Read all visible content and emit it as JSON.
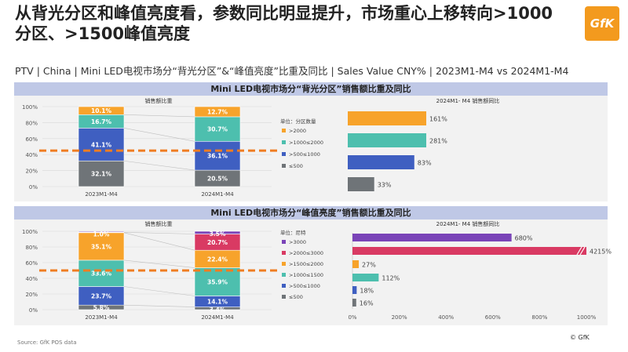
{
  "header": {
    "title": "从背光分区和峰值亮度看，参数同比明显提升，市场重心上移转向>1000分区、>1500峰值亮度",
    "logo": "GfK",
    "subtitle": "PTV | China | Mini LED电视市场分“背光分区”&“峰值亮度”比重及同比 | Sales Value CNY% | 2023M1-M4 vs 2024M1-M4"
  },
  "footer": {
    "source": "Source: GfK POS data",
    "copyright": "© GfK"
  },
  "panels": [
    {
      "title": "Mini LED电视市场分“背光分区”销售额比重及同比"
    },
    {
      "title": "Mini LED电视市场分“峰值亮度”销售额比重及同比"
    }
  ],
  "chart_data": [
    {
      "type": "bar",
      "stacked": true,
      "title": "销售额比重",
      "categories": [
        "2023M1-M4",
        "2024M1-M4"
      ],
      "legend_title": "单位：分区数量",
      "yticks": [
        "0%",
        "20%",
        "40%",
        "60%",
        "80%",
        "100%"
      ],
      "ylim": [
        0,
        100
      ],
      "reference_line": 45,
      "series": [
        {
          "name": "≤500",
          "color": "#6f7478",
          "values": [
            32.1,
            20.5
          ],
          "labels": [
            "32.1%",
            "20.5%"
          ]
        },
        {
          "name": ">500≤1000",
          "color": "#3f5fc1",
          "values": [
            41.1,
            36.1
          ],
          "labels": [
            "41.1%",
            "36.1%"
          ]
        },
        {
          "name": ">1000≤2000",
          "color": "#4dbfae",
          "values": [
            16.7,
            30.7
          ],
          "labels": [
            "16.7%",
            "30.7%"
          ]
        },
        {
          "name": ">2000",
          "color": "#f7a32b",
          "values": [
            10.1,
            12.7
          ],
          "labels": [
            "10.1%",
            "12.7%"
          ]
        }
      ]
    },
    {
      "type": "bar",
      "orientation": "horizontal",
      "title": "2024M1- M4 销售额同比",
      "categories": [
        ">2000",
        ">1000≤2000",
        ">500≤1000",
        "≤500"
      ],
      "values": [
        161,
        281,
        83,
        33
      ],
      "labels": [
        "161%",
        "281%",
        "83%",
        "33%"
      ],
      "colors": [
        "#f7a32b",
        "#4dbfae",
        "#3f5fc1",
        "#6f7478"
      ]
    },
    {
      "type": "bar",
      "stacked": true,
      "title": "销售额比重",
      "categories": [
        "2023M1-M4",
        "2024M1-M4"
      ],
      "legend_title": "单位：尼特",
      "yticks": [
        "0%",
        "20%",
        "40%",
        "60%",
        "80%",
        "100%"
      ],
      "ylim": [
        0,
        100
      ],
      "reference_line": 50,
      "series": [
        {
          "name": "≤500",
          "color": "#6f7478",
          "values": [
            5.8,
            3.4
          ],
          "labels": [
            "5.8%",
            "3.4%"
          ]
        },
        {
          "name": ">500≤1000",
          "color": "#3f5fc1",
          "values": [
            23.7,
            14.1
          ],
          "labels": [
            "23.7%",
            "14.1%"
          ]
        },
        {
          "name": ">1000≤1500",
          "color": "#4dbfae",
          "values": [
            33.6,
            35.9
          ],
          "labels": [
            "33.6%",
            "35.9%"
          ]
        },
        {
          "name": ">1500≤2000",
          "color": "#f7a32b",
          "values": [
            35.1,
            22.4
          ],
          "labels": [
            "35.1%",
            "22.4%"
          ]
        },
        {
          "name": ">2000≤3000",
          "color": "#d93a63",
          "values": [
            0.5,
            20.7
          ],
          "labels": [
            "",
            "20.7%"
          ]
        },
        {
          "name": ">3000",
          "color": "#7a44b8",
          "values": [
            1.0,
            3.5
          ],
          "labels": [
            "1.0%",
            "3.5%"
          ]
        }
      ]
    },
    {
      "type": "bar",
      "orientation": "horizontal",
      "title": "2024M1- M4 销售额同比",
      "categories": [
        ">3000",
        ">2000≤3000",
        ">1500≤2000",
        ">1000≤1500",
        ">500≤1000",
        "≤500"
      ],
      "values": [
        680,
        4215,
        27,
        112,
        18,
        16
      ],
      "labels": [
        "680%",
        "4215%",
        "27%",
        "112%",
        "18%",
        "16%"
      ],
      "colors": [
        "#7a44b8",
        "#d93a63",
        "#f7a32b",
        "#4dbfae",
        "#3f5fc1",
        "#6f7478"
      ],
      "xlim": [
        0,
        1000
      ],
      "xticks": [
        "0%",
        "200%",
        "400%",
        "600%",
        "800%",
        "1000%"
      ],
      "axis_break": ">2000≤3000"
    }
  ]
}
